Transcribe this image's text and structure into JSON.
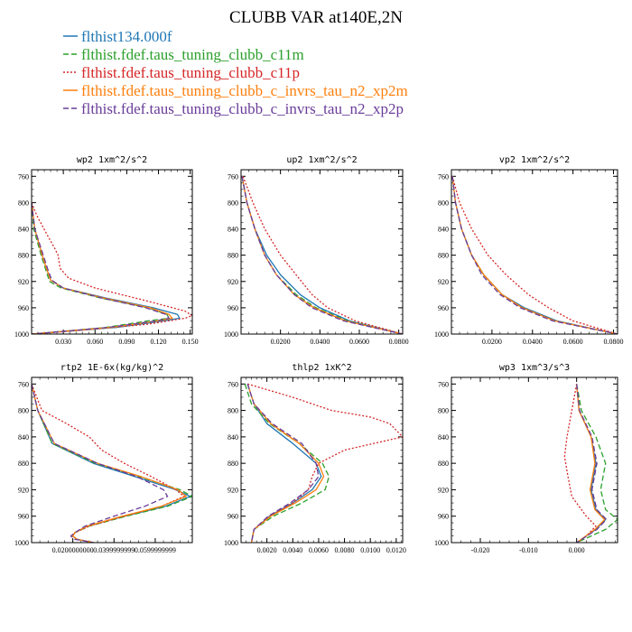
{
  "figure": {
    "title": "CLUBB VAR at140E,2N"
  },
  "legend": [
    {
      "label": "flthist134.000f",
      "color": "#1f77b4",
      "dash": "solid"
    },
    {
      "label": "flthist.fdef.taus_tuning_clubb_c11m",
      "color": "#2ca02c",
      "dash": "dashed"
    },
    {
      "label": "flthist.fdef.taus_tuning_clubb_c11p",
      "color": "#d62728",
      "dash": "dotted"
    },
    {
      "label": "flthist.fdef.taus_tuning_clubb_c_invrs_tau_n2_xp2m",
      "color": "#ff7f0e",
      "dash": "solid"
    },
    {
      "label": "flthist.fdef.taus_tuning_clubb_c_invrs_tau_n2_xp2p",
      "color": "#6a3d9a",
      "dash": "dashed"
    }
  ],
  "chart_data": [
    {
      "type": "line",
      "title": "wp2  1xm^2/s^2",
      "xlim": [
        0,
        0.152
      ],
      "ylim": [
        1000,
        750
      ],
      "xticks": [
        0.03,
        0.06,
        0.09,
        0.12,
        0.15
      ],
      "xtick_labels": [
        "0.030",
        "0.060",
        "0.090",
        "0.120",
        "0.150"
      ],
      "yticks": [
        760,
        800,
        840,
        880,
        920,
        960,
        1000
      ],
      "ytick_labels": [
        "760",
        "800",
        "840",
        "880",
        "920",
        "960",
        "1000"
      ],
      "series": [
        {
          "legend": 0,
          "y": [
            800,
            840,
            880,
            900,
            918,
            930,
            945,
            960,
            970,
            976,
            980,
            990,
            1000
          ],
          "x": [
            0,
            0.003,
            0.01,
            0.014,
            0.018,
            0.03,
            0.07,
            0.115,
            0.138,
            0.14,
            0.125,
            0.08,
            0
          ]
        },
        {
          "legend": 1,
          "y": [
            800,
            840,
            880,
            900,
            920,
            930,
            945,
            960,
            970,
            976,
            980,
            990,
            1000
          ],
          "x": [
            0,
            0.002,
            0.009,
            0.013,
            0.017,
            0.028,
            0.065,
            0.11,
            0.128,
            0.13,
            0.11,
            0.07,
            0
          ]
        },
        {
          "legend": 2,
          "y": [
            800,
            820,
            850,
            870,
            880,
            900,
            915,
            930,
            950,
            965,
            972,
            976,
            985,
            995,
            1000
          ],
          "x": [
            0,
            0.005,
            0.015,
            0.022,
            0.025,
            0.027,
            0.035,
            0.06,
            0.11,
            0.145,
            0.152,
            0.145,
            0.11,
            0.04,
            0
          ]
        },
        {
          "legend": 3,
          "y": [
            800,
            840,
            880,
            900,
            918,
            930,
            945,
            960,
            970,
            976,
            980,
            990,
            1000
          ],
          "x": [
            0,
            0.003,
            0.01,
            0.014,
            0.018,
            0.03,
            0.068,
            0.112,
            0.13,
            0.133,
            0.12,
            0.075,
            0
          ]
        },
        {
          "legend": 4,
          "y": [
            800,
            840,
            880,
            900,
            918,
            930,
            945,
            960,
            970,
            976,
            980,
            990,
            1000
          ],
          "x": [
            0,
            0.003,
            0.011,
            0.015,
            0.019,
            0.03,
            0.066,
            0.108,
            0.127,
            0.13,
            0.118,
            0.072,
            0
          ]
        }
      ]
    },
    {
      "type": "line",
      "title": "up2  1xm^2/s^2",
      "xlim": [
        0,
        0.082
      ],
      "ylim": [
        1000,
        750
      ],
      "xticks": [
        0.02,
        0.04,
        0.06,
        0.08
      ],
      "xtick_labels": [
        "0.0200",
        "0.0400",
        "0.0600",
        "0.0800"
      ],
      "yticks": [
        760,
        800,
        840,
        880,
        920,
        960,
        1000
      ],
      "ytick_labels": [
        "760",
        "800",
        "840",
        "880",
        "920",
        "960",
        "1000"
      ],
      "series": [
        {
          "legend": 0,
          "y": [
            760,
            800,
            840,
            880,
            910,
            940,
            960,
            980,
            1000
          ],
          "x": [
            0.0005,
            0.003,
            0.007,
            0.013,
            0.02,
            0.03,
            0.04,
            0.055,
            0.082
          ]
        },
        {
          "legend": 1,
          "y": [
            760,
            800,
            840,
            880,
            910,
            940,
            960,
            980,
            1000
          ],
          "x": [
            0.0005,
            0.003,
            0.007,
            0.012,
            0.018,
            0.028,
            0.038,
            0.054,
            0.082
          ]
        },
        {
          "legend": 2,
          "y": [
            760,
            800,
            840,
            880,
            910,
            940,
            960,
            980,
            1000
          ],
          "x": [
            0.001,
            0.006,
            0.012,
            0.02,
            0.028,
            0.036,
            0.044,
            0.058,
            0.082
          ]
        },
        {
          "legend": 3,
          "y": [
            760,
            800,
            840,
            880,
            910,
            940,
            960,
            980,
            1000
          ],
          "x": [
            0.0005,
            0.003,
            0.007,
            0.012,
            0.018,
            0.027,
            0.037,
            0.053,
            0.082
          ]
        },
        {
          "legend": 4,
          "y": [
            760,
            800,
            840,
            880,
            910,
            940,
            960,
            980,
            1000
          ],
          "x": [
            0.0005,
            0.003,
            0.007,
            0.012,
            0.018,
            0.027,
            0.036,
            0.052,
            0.082
          ]
        }
      ]
    },
    {
      "type": "line",
      "title": "vp2  1xm^2/s^2",
      "xlim": [
        0,
        0.082
      ],
      "ylim": [
        1000,
        750
      ],
      "xticks": [
        0.02,
        0.04,
        0.06,
        0.08
      ],
      "xtick_labels": [
        "0.0200",
        "0.0400",
        "0.0600",
        "0.0800"
      ],
      "yticks": [
        760,
        800,
        840,
        880,
        920,
        960,
        1000
      ],
      "ytick_labels": [
        "760",
        "800",
        "840",
        "880",
        "920",
        "960",
        "1000"
      ],
      "series": [
        {
          "legend": 0,
          "y": [
            760,
            800,
            840,
            880,
            910,
            940,
            960,
            980,
            1000
          ],
          "x": [
            0.0005,
            0.002,
            0.005,
            0.01,
            0.016,
            0.025,
            0.036,
            0.052,
            0.082
          ]
        },
        {
          "legend": 1,
          "y": [
            760,
            800,
            840,
            880,
            910,
            940,
            960,
            980,
            1000
          ],
          "x": [
            0.0005,
            0.002,
            0.005,
            0.01,
            0.016,
            0.025,
            0.035,
            0.051,
            0.082
          ]
        },
        {
          "legend": 2,
          "y": [
            760,
            800,
            840,
            880,
            910,
            940,
            960,
            980,
            1000
          ],
          "x": [
            0.0005,
            0.004,
            0.01,
            0.018,
            0.027,
            0.038,
            0.048,
            0.06,
            0.082
          ]
        },
        {
          "legend": 3,
          "y": [
            760,
            800,
            840,
            880,
            910,
            940,
            960,
            980,
            1000
          ],
          "x": [
            0.0005,
            0.002,
            0.005,
            0.01,
            0.016,
            0.025,
            0.035,
            0.051,
            0.082
          ]
        },
        {
          "legend": 4,
          "y": [
            760,
            800,
            840,
            880,
            910,
            940,
            960,
            980,
            1000
          ],
          "x": [
            0.0005,
            0.002,
            0.005,
            0.01,
            0.015,
            0.024,
            0.034,
            0.05,
            0.082
          ]
        }
      ]
    },
    {
      "type": "line",
      "title": "rtp2  1E-6x(kg/kg)^2",
      "xlim": [
        0,
        0.078
      ],
      "ylim": [
        1000,
        750
      ],
      "xticks": [
        0.02,
        0.04,
        0.06
      ],
      "xtick_labels": [
        "0.0200000000",
        "0.0399999999",
        "0.0599999999"
      ],
      "yticks": [
        760,
        800,
        840,
        880,
        920,
        960,
        1000
      ],
      "ytick_labels": [
        "760",
        "800",
        "840",
        "880",
        "920",
        "960",
        "1000"
      ],
      "series": [
        {
          "legend": 0,
          "y": [
            760,
            800,
            850,
            880,
            900,
            920,
            930,
            945,
            960,
            975,
            985,
            990,
            995,
            1000
          ],
          "x": [
            0.0,
            0.003,
            0.01,
            0.03,
            0.05,
            0.07,
            0.077,
            0.065,
            0.045,
            0.027,
            0.021,
            0.02,
            0.022,
            0.03
          ]
        },
        {
          "legend": 1,
          "y": [
            760,
            800,
            850,
            880,
            900,
            920,
            930,
            945,
            960,
            975,
            985,
            990,
            995,
            1000
          ],
          "x": [
            0.0,
            0.003,
            0.01,
            0.031,
            0.052,
            0.072,
            0.078,
            0.066,
            0.046,
            0.028,
            0.021,
            0.02,
            0.022,
            0.03
          ]
        },
        {
          "legend": 2,
          "y": [
            760,
            800,
            820,
            840,
            860,
            880,
            900,
            920,
            930,
            945,
            960,
            975,
            985,
            990,
            995,
            1000
          ],
          "x": [
            0.0,
            0.005,
            0.017,
            0.028,
            0.034,
            0.045,
            0.058,
            0.07,
            0.074,
            0.063,
            0.045,
            0.028,
            0.021,
            0.02,
            0.022,
            0.03
          ]
        },
        {
          "legend": 3,
          "y": [
            760,
            800,
            850,
            880,
            900,
            920,
            930,
            945,
            960,
            975,
            985,
            990,
            995,
            1000
          ],
          "x": [
            0.0,
            0.003,
            0.011,
            0.032,
            0.053,
            0.071,
            0.075,
            0.063,
            0.044,
            0.027,
            0.021,
            0.02,
            0.022,
            0.03
          ]
        },
        {
          "legend": 4,
          "y": [
            760,
            800,
            850,
            880,
            900,
            920,
            930,
            945,
            960,
            975,
            985,
            990,
            995,
            1000
          ],
          "x": [
            0.0,
            0.003,
            0.011,
            0.032,
            0.051,
            0.064,
            0.066,
            0.055,
            0.04,
            0.026,
            0.021,
            0.019,
            0.021,
            0.03
          ]
        }
      ]
    },
    {
      "type": "line",
      "title": "thlp2  1xK^2",
      "xlim": [
        0,
        0.0125
      ],
      "ylim": [
        1000,
        750
      ],
      "xticks": [
        0.002,
        0.004,
        0.006,
        0.008,
        0.01,
        0.012
      ],
      "xtick_labels": [
        "0.0020",
        "0.0040",
        "0.0060",
        "0.0080",
        "0.0100",
        "0.0120"
      ],
      "yticks": [
        760,
        800,
        840,
        880,
        920,
        960,
        1000
      ],
      "ytick_labels": [
        "760",
        "800",
        "840",
        "880",
        "920",
        "960",
        "1000"
      ],
      "series": [
        {
          "legend": 0,
          "y": [
            760,
            790,
            820,
            850,
            880,
            900,
            920,
            940,
            960,
            980,
            1000
          ],
          "x": [
            0.0005,
            0.001,
            0.002,
            0.004,
            0.0058,
            0.0062,
            0.0055,
            0.004,
            0.0022,
            0.001,
            0.0008
          ]
        },
        {
          "legend": 1,
          "y": [
            760,
            790,
            820,
            850,
            880,
            900,
            920,
            940,
            960,
            980,
            1000
          ],
          "x": [
            0.0003,
            0.0008,
            0.0022,
            0.0045,
            0.0063,
            0.0068,
            0.0065,
            0.0047,
            0.0025,
            0.001,
            0.0008
          ]
        },
        {
          "legend": 2,
          "y": [
            760,
            780,
            800,
            810,
            820,
            840,
            860,
            880,
            900,
            920,
            940,
            960,
            980,
            1000
          ],
          "x": [
            0.0005,
            0.004,
            0.007,
            0.01,
            0.0115,
            0.0125,
            0.008,
            0.006,
            0.0055,
            0.0052,
            0.004,
            0.0022,
            0.001,
            0.0008
          ]
        },
        {
          "legend": 3,
          "y": [
            760,
            790,
            820,
            850,
            880,
            900,
            920,
            940,
            960,
            980,
            1000
          ],
          "x": [
            0.0005,
            0.001,
            0.0023,
            0.0045,
            0.006,
            0.0064,
            0.0058,
            0.0042,
            0.0023,
            0.001,
            0.0008
          ]
        },
        {
          "legend": 4,
          "y": [
            760,
            790,
            820,
            850,
            880,
            900,
            920,
            940,
            960,
            980,
            1000
          ],
          "x": [
            0.0005,
            0.001,
            0.0024,
            0.0047,
            0.0058,
            0.006,
            0.0052,
            0.0038,
            0.0021,
            0.001,
            0.0008
          ]
        }
      ]
    },
    {
      "type": "line",
      "title": "wp3  1xm^3/s^3",
      "xlim": [
        -0.026,
        0.0085
      ],
      "ylim": [
        1000,
        750
      ],
      "xticks": [
        -0.02,
        -0.01,
        0.0
      ],
      "xtick_labels": [
        "-0.020",
        "-0.010",
        "0.000"
      ],
      "yticks": [
        760,
        800,
        840,
        880,
        920,
        960,
        1000
      ],
      "ytick_labels": [
        "760",
        "800",
        "840",
        "880",
        "920",
        "960",
        "1000"
      ],
      "series": [
        {
          "legend": 0,
          "y": [
            760,
            800,
            840,
            880,
            920,
            950,
            965,
            980,
            1000
          ],
          "x": [
            0.0,
            0.0005,
            0.003,
            0.004,
            0.003,
            0.004,
            0.006,
            0.004,
            0.0
          ]
        },
        {
          "legend": 1,
          "y": [
            760,
            800,
            840,
            880,
            920,
            950,
            965,
            980,
            1000
          ],
          "x": [
            0.0,
            0.001,
            0.004,
            0.006,
            0.005,
            0.006,
            0.0085,
            0.006,
            0.0
          ]
        },
        {
          "legend": 2,
          "y": [
            760,
            800,
            840,
            870,
            900,
            930,
            960,
            975,
            990,
            1000
          ],
          "x": [
            0.0,
            -0.001,
            -0.002,
            -0.0025,
            -0.0018,
            -0.001,
            0.002,
            0.004,
            0.002,
            0.0
          ]
        },
        {
          "legend": 3,
          "y": [
            760,
            800,
            840,
            880,
            920,
            950,
            965,
            980,
            1000
          ],
          "x": [
            0.0,
            0.0005,
            0.003,
            0.0038,
            0.0028,
            0.0038,
            0.0058,
            0.0038,
            0.0
          ]
        },
        {
          "legend": 4,
          "y": [
            760,
            800,
            840,
            880,
            920,
            950,
            965,
            980,
            1000
          ],
          "x": [
            0.0,
            0.0006,
            0.0032,
            0.0042,
            0.0032,
            0.0042,
            0.0062,
            0.0042,
            0.0
          ]
        }
      ]
    }
  ]
}
